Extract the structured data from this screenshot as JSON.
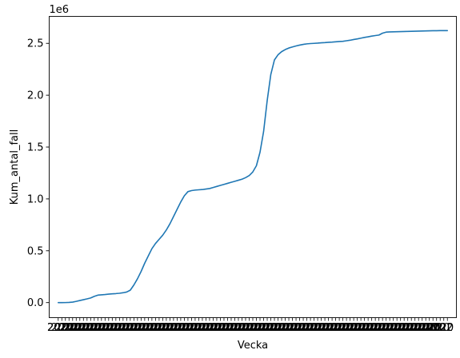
{
  "chart_data": {
    "type": "line",
    "xlabel": "Vecka",
    "ylabel": "Kum_antal_fall",
    "y_offset_label": "1e6",
    "x_tick_overlap_text": "2020",
    "x_tick_right_text": "2022",
    "xlim": [
      -2.5,
      110.5
    ],
    "ylim": [
      -145000,
      2760000
    ],
    "yticks": [
      0,
      500000,
      1000000,
      1500000,
      2000000,
      2500000
    ],
    "ytick_labels": [
      "0.0",
      "0.5",
      "1.0",
      "1.5",
      "2.0",
      "2.5"
    ],
    "grid": false,
    "line_color": "#1f77b4",
    "series": [
      {
        "x": [
          0,
          1,
          2,
          3,
          4,
          5,
          6,
          7,
          8,
          9,
          10,
          11,
          12,
          13,
          14,
          15,
          16,
          17,
          18,
          19,
          20,
          21,
          22,
          23,
          24,
          25,
          26,
          27,
          28,
          29,
          30,
          31,
          32,
          33,
          34,
          35,
          36,
          37,
          38,
          39,
          40,
          41,
          42,
          43,
          44,
          45,
          46,
          47,
          48,
          49,
          50,
          51,
          52,
          53,
          54,
          55,
          56,
          57,
          58,
          59,
          60,
          61,
          62,
          63,
          64,
          65,
          66,
          67,
          68,
          69,
          70,
          71,
          72,
          73,
          74,
          75,
          76,
          77,
          78,
          79,
          80,
          81,
          82,
          83,
          84,
          85,
          86,
          87,
          88,
          89,
          90,
          91,
          92,
          93,
          94,
          95,
          96,
          97,
          98,
          99,
          100,
          101,
          102,
          103,
          104,
          105,
          106,
          107,
          108
        ],
        "values": [
          0,
          0,
          500,
          2000,
          5000,
          12000,
          20000,
          28000,
          36000,
          45000,
          60000,
          72000,
          75000,
          78000,
          82000,
          85000,
          87000,
          90000,
          95000,
          102000,
          120000,
          170000,
          230000,
          300000,
          380000,
          450000,
          520000,
          570000,
          610000,
          650000,
          700000,
          760000,
          830000,
          900000,
          970000,
          1030000,
          1070000,
          1080000,
          1085000,
          1088000,
          1090000,
          1095000,
          1100000,
          1110000,
          1120000,
          1130000,
          1140000,
          1150000,
          1160000,
          1170000,
          1180000,
          1190000,
          1205000,
          1225000,
          1260000,
          1320000,
          1450000,
          1650000,
          1950000,
          2200000,
          2340000,
          2390000,
          2420000,
          2440000,
          2455000,
          2465000,
          2475000,
          2483000,
          2490000,
          2495000,
          2498000,
          2500000,
          2502000,
          2505000,
          2507000,
          2510000,
          2512000,
          2515000,
          2518000,
          2520000,
          2525000,
          2530000,
          2537000,
          2543000,
          2550000,
          2557000,
          2563000,
          2570000,
          2575000,
          2580000,
          2598000,
          2608000,
          2610000,
          2611000,
          2612000,
          2613000,
          2614000,
          2615000,
          2616000,
          2617000,
          2618000,
          2619000,
          2620000,
          2621000,
          2622000,
          2622000,
          2623000,
          2623000,
          2623000
        ]
      }
    ]
  }
}
